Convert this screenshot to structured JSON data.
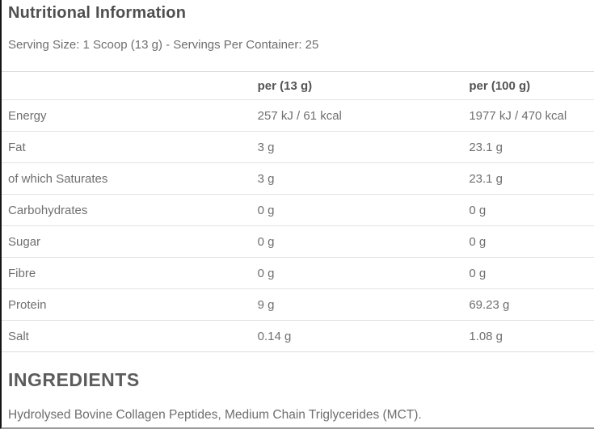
{
  "page": {
    "title": "Nutritional Information",
    "serving_info": "Serving Size: 1 Scoop (13 g) - Servings Per Container: 25"
  },
  "table": {
    "columns": [
      "",
      "per (13 g)",
      "per (100 g)"
    ],
    "rows": [
      {
        "label": "Energy",
        "per_serving": "257 kJ / 61 kcal",
        "per_100g": "1977 kJ / 470 kcal"
      },
      {
        "label": "Fat",
        "per_serving": "3 g",
        "per_100g": "23.1 g"
      },
      {
        "label": "of which Saturates",
        "per_serving": "3 g",
        "per_100g": "23.1 g"
      },
      {
        "label": "Carbohydrates",
        "per_serving": "0 g",
        "per_100g": "0 g"
      },
      {
        "label": "Sugar",
        "per_serving": "0 g",
        "per_100g": "0 g"
      },
      {
        "label": "Fibre",
        "per_serving": "0 g",
        "per_100g": "0 g"
      },
      {
        "label": "Protein",
        "per_serving": "9 g",
        "per_100g": "69.23 g"
      },
      {
        "label": "Salt",
        "per_serving": "0.14 g",
        "per_100g": "1.08 g"
      }
    ]
  },
  "ingredients": {
    "heading": "INGREDIENTS",
    "text": "Hydrolysed Bovine Collagen Peptides, Medium Chain Triglycerides (MCT)."
  },
  "colors": {
    "heading_text": "#4f4f4f",
    "body_text": "#6e6e6e",
    "divider": "#e2e2e2",
    "left_border": "#151515"
  }
}
